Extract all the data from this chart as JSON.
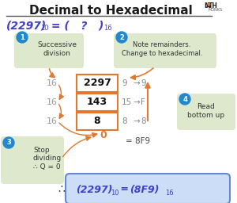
{
  "title": "Decimal to Hexadecimal",
  "bg_color": "#ffffff",
  "title_color": "#1a1a1a",
  "blue_color": "#4040cc",
  "orange_color": "#e07830",
  "green_bg": "#dde8cc",
  "circle_blue": "#2288cc",
  "box_border": "#e07830",
  "result_box_color": "#ccddf8",
  "result_border": "#6688cc",
  "divisor": "16",
  "dividends": [
    "2297",
    "143",
    "8"
  ],
  "remainders": [
    "9",
    "15",
    "8"
  ],
  "hex_remainders": [
    "9",
    "F",
    "8"
  ],
  "answer": "8F9",
  "step1_label": "Successive\ndivision",
  "step2_label": "Note remainders.\nChange to hexadecimal.",
  "step3_label": "Stop\ndividing\n∴ Q = 0",
  "step4_label": "Read\nbottom up"
}
